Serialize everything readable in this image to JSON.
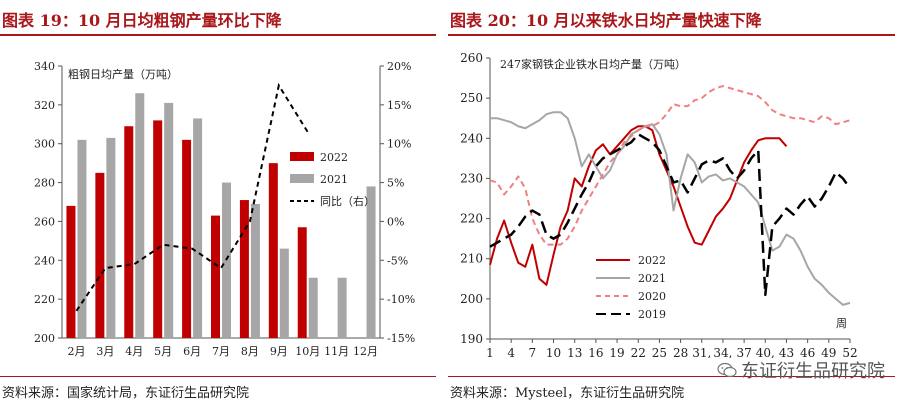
{
  "left_panel": {
    "title": "图表 19：10 月日均粗钢产量环比下降",
    "source": "资料来源：国家统计局，东证衍生品研究院"
  },
  "right_panel": {
    "title": "图表 20：10 月以来铁水日均产量快速下降",
    "source": "资料来源：Mysteel，东证衍生品研究院"
  },
  "watermark": {
    "text": "东证衍生品研究院",
    "icon": "wechat-logo-icon"
  },
  "colors": {
    "red": "#c00000",
    "gray": "#a6a6a6",
    "black": "#000000",
    "pink": "#f08080",
    "title_red": "#a9171b"
  },
  "chart_data": [
    {
      "type": "bar",
      "title": "粗钢日均产量（万吨）",
      "categories": [
        "2月",
        "3月",
        "4月",
        "5月",
        "6月",
        "7月",
        "8月",
        "9月",
        "10月",
        "11月",
        "12月"
      ],
      "ylim": [
        200,
        340
      ],
      "yticks": [
        200,
        220,
        240,
        260,
        280,
        300,
        320,
        340
      ],
      "y2lim": [
        -15,
        20
      ],
      "y2ticks": [
        "-15%",
        "-10%",
        "-5%",
        "0%",
        "5%",
        "10%",
        "15%",
        "20%"
      ],
      "y2tick_values": [
        -15,
        -10,
        -5,
        0,
        5,
        10,
        15,
        20
      ],
      "series": [
        {
          "name": "2022",
          "kind": "bar",
          "color": "#c00000",
          "values": [
            268,
            285,
            309,
            312,
            302,
            263,
            271,
            290,
            257,
            null,
            null
          ]
        },
        {
          "name": "2021",
          "kind": "bar",
          "color": "#a6a6a6",
          "values": [
            302,
            303,
            326,
            321,
            313,
            280,
            269,
            246,
            231,
            231,
            278
          ]
        },
        {
          "name": "同比（右）",
          "kind": "line",
          "dash": true,
          "color": "#000000",
          "axis": "right",
          "values": [
            -11.5,
            -6,
            -5.5,
            -3,
            -3.5,
            -6,
            0,
            17.5,
            11.5,
            null,
            null
          ]
        }
      ],
      "legend": "middle-right",
      "grid": false
    },
    {
      "type": "line",
      "title": "247家钢铁企业铁水日均产量（万吨）",
      "xlabel": "周",
      "x_ticks": [
        1,
        4,
        7,
        10,
        13,
        16,
        19,
        22,
        25,
        28,
        31,
        34,
        37,
        40,
        43,
        46,
        49,
        52
      ],
      "x_tick_labels": [
        "1",
        "4",
        "7",
        "10",
        "13",
        "16",
        "19",
        "22",
        "25",
        "28",
        "31,",
        "34,",
        "37",
        "40,",
        "43",
        "46",
        "49",
        "52"
      ],
      "ylim": [
        190,
        260
      ],
      "yticks": [
        190,
        200,
        210,
        220,
        230,
        240,
        250,
        260
      ],
      "grid": false,
      "legend": "bottom-center",
      "series": [
        {
          "name": "2022",
          "color": "#c00000",
          "style": "solid",
          "x": [
            1,
            2,
            3,
            4,
            5,
            6,
            7,
            8,
            9,
            10,
            11,
            12,
            13,
            14,
            15,
            16,
            17,
            18,
            19,
            20,
            21,
            22,
            23,
            24,
            25,
            26,
            27,
            28,
            29,
            30,
            31,
            32,
            33,
            34,
            35,
            36,
            37,
            38,
            39,
            40,
            41,
            42,
            43
          ],
          "y": [
            208.5,
            215,
            219.5,
            214,
            209,
            208,
            213.5,
            205,
            203.5,
            211,
            218,
            222,
            230,
            228,
            233,
            237,
            238.5,
            236,
            238,
            240,
            242,
            243,
            243,
            242,
            236,
            232,
            228,
            223,
            218,
            214,
            213.5,
            217,
            220.5,
            222.5,
            225,
            229.5,
            234,
            237,
            239.5,
            240,
            240,
            240,
            238
          ]
        },
        {
          "name": "2021",
          "color": "#a6a6a6",
          "style": "solid",
          "x": [
            1,
            2,
            3,
            4,
            5,
            6,
            7,
            8,
            9,
            10,
            11,
            12,
            13,
            14,
            15,
            16,
            17,
            18,
            19,
            20,
            21,
            22,
            23,
            24,
            25,
            26,
            27,
            28,
            29,
            30,
            31,
            32,
            33,
            34,
            35,
            36,
            37,
            38,
            39,
            40,
            41,
            42,
            43,
            44,
            45,
            46,
            47,
            48,
            49,
            50,
            51,
            52
          ],
          "y": [
            245,
            245,
            244.5,
            244,
            243,
            242.5,
            243.5,
            244.5,
            246,
            246.5,
            246.5,
            245,
            240,
            233,
            236,
            233,
            230,
            232,
            236,
            238,
            241,
            242,
            243,
            243.5,
            241,
            236,
            222,
            230,
            236,
            234,
            229,
            230.5,
            231,
            229.5,
            230,
            229,
            228,
            226,
            224,
            218,
            212,
            213,
            216,
            215,
            212,
            208,
            205,
            203.5,
            201.5,
            200,
            198.5,
            199
          ]
        },
        {
          "name": "2020",
          "color": "#f08080",
          "style": "dash",
          "x": [
            1,
            2,
            3,
            4,
            5,
            6,
            7,
            8,
            9,
            10,
            11,
            12,
            13,
            14,
            15,
            16,
            17,
            18,
            19,
            20,
            21,
            22,
            23,
            24,
            25,
            26,
            27,
            28,
            29,
            30,
            31,
            32,
            33,
            34,
            35,
            36,
            37,
            38,
            39,
            40,
            41,
            42,
            43,
            44,
            45,
            46,
            47,
            48,
            49,
            50,
            51,
            52
          ],
          "y": [
            229.5,
            229,
            226,
            228,
            230.5,
            227.5,
            220,
            216,
            213.5,
            213.5,
            213.5,
            215,
            218,
            222,
            225,
            228,
            231,
            234,
            236,
            239,
            240.5,
            242,
            243,
            243,
            244,
            246,
            248.5,
            248,
            248,
            249.5,
            250,
            251.5,
            252.5,
            253,
            252.5,
            252,
            251.5,
            251,
            250.5,
            249,
            247,
            246,
            245.5,
            245,
            245,
            244.5,
            244,
            245.5,
            245,
            243.5,
            244,
            244.5
          ]
        },
        {
          "name": "2019",
          "color": "#000000",
          "style": "dash",
          "x": [
            1,
            2,
            3,
            4,
            5,
            6,
            7,
            8,
            9,
            10,
            11,
            12,
            13,
            14,
            15,
            16,
            17,
            18,
            19,
            20,
            21,
            22,
            23,
            24,
            25,
            26,
            27,
            28,
            29,
            30,
            31,
            32,
            33,
            34,
            35,
            36,
            37,
            38,
            39,
            40,
            41,
            42,
            43,
            44,
            45,
            46,
            47,
            48,
            49,
            50,
            51,
            52
          ],
          "y": [
            213,
            214,
            215,
            216,
            218,
            220.5,
            222,
            221,
            216,
            215,
            216,
            219,
            222.5,
            226,
            229,
            233,
            235,
            236,
            237,
            238,
            239,
            241,
            240,
            239,
            237,
            233,
            229,
            229.5,
            226.5,
            230,
            233.5,
            234.5,
            234,
            235,
            232,
            230,
            232,
            235,
            237,
            201,
            218,
            220,
            222.5,
            221,
            223.5,
            225.5,
            223,
            225,
            228,
            231.5,
            230,
            227.5
          ]
        }
      ]
    }
  ]
}
